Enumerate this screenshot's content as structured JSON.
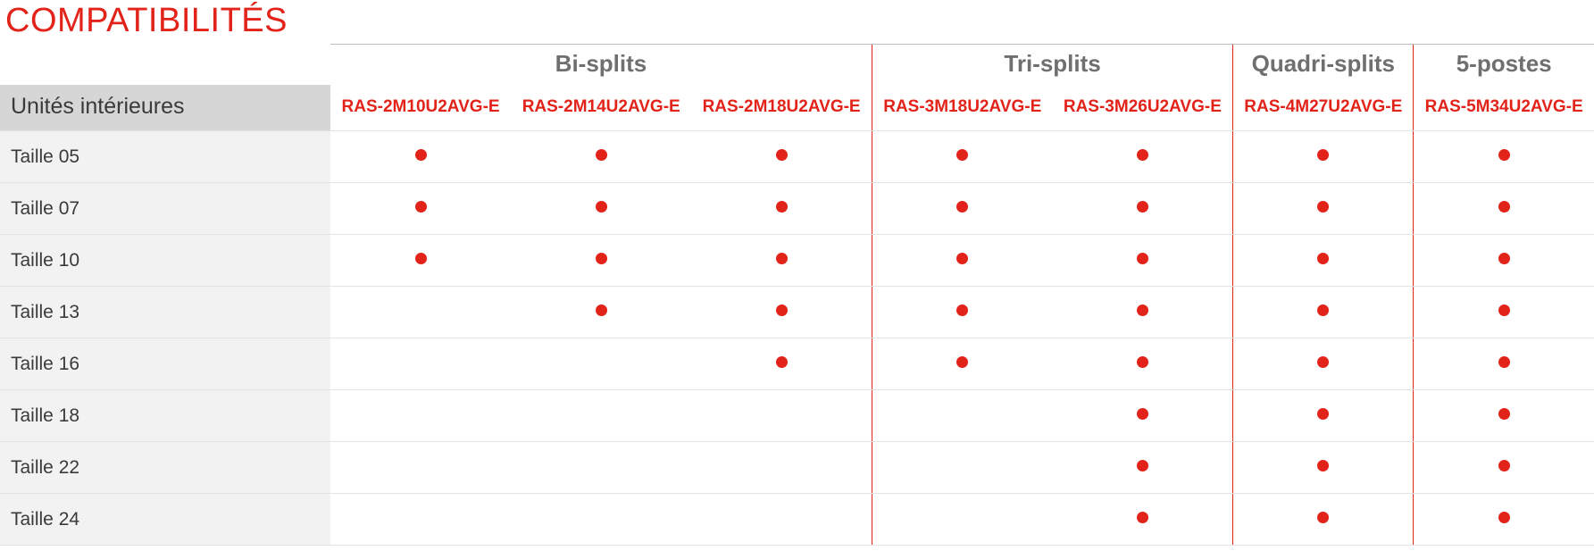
{
  "colors": {
    "title": "#e2231a",
    "group_header_text": "#6f6f6f",
    "group_header_border_top": "#bfbfbf",
    "model_text": "#e2231a",
    "rowhdr_bg": "#d6d6d6",
    "rowhdr_text": "#3a3a3a",
    "body_stripe": "#f2f2f2",
    "body_bg": "#ffffff",
    "body_row_border": "#e3e3e3",
    "body_text": "#3a3a3a",
    "dot": "#e2231a",
    "vsep": "#e2231a"
  },
  "title": "COMPATIBILITÉS",
  "row_header_title": "Unités intérieures",
  "groups": [
    {
      "label": "Bi-splits",
      "span": 3
    },
    {
      "label": "Tri-splits",
      "span": 2
    },
    {
      "label": "Quadri-splits",
      "span": 1
    },
    {
      "label": "5-postes",
      "span": 1
    }
  ],
  "columns": [
    "RAS-2M10U2AVG-E",
    "RAS-2M14U2AVG-E",
    "RAS-2M18U2AVG-E",
    "RAS-3M18U2AVG-E",
    "RAS-3M26U2AVG-E",
    "RAS-4M27U2AVG-E",
    "RAS-5M34U2AVG-E"
  ],
  "group_start_cols": [
    0,
    3,
    5,
    6
  ],
  "rows": [
    {
      "label": "Taille 05",
      "cells": [
        1,
        1,
        1,
        1,
        1,
        1,
        1
      ]
    },
    {
      "label": "Taille 07",
      "cells": [
        1,
        1,
        1,
        1,
        1,
        1,
        1
      ]
    },
    {
      "label": "Taille 10",
      "cells": [
        1,
        1,
        1,
        1,
        1,
        1,
        1
      ]
    },
    {
      "label": "Taille 13",
      "cells": [
        0,
        1,
        1,
        1,
        1,
        1,
        1
      ]
    },
    {
      "label": "Taille 16",
      "cells": [
        0,
        0,
        1,
        1,
        1,
        1,
        1
      ]
    },
    {
      "label": "Taille 18",
      "cells": [
        0,
        0,
        0,
        0,
        1,
        1,
        1
      ]
    },
    {
      "label": "Taille 22",
      "cells": [
        0,
        0,
        0,
        0,
        1,
        1,
        1
      ]
    },
    {
      "label": "Taille 24",
      "cells": [
        0,
        0,
        0,
        0,
        1,
        1,
        1
      ]
    }
  ]
}
